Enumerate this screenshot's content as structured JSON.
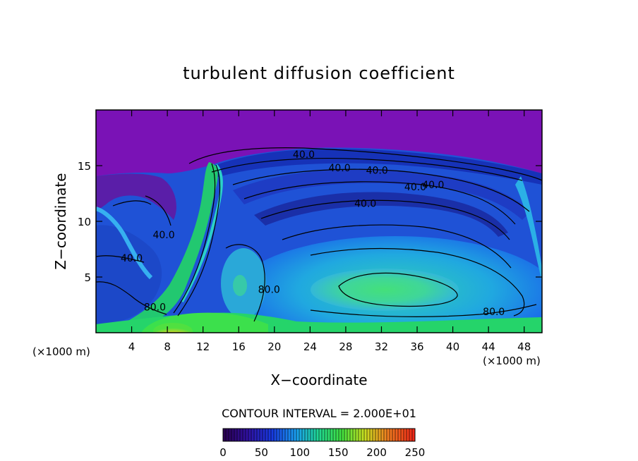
{
  "chart_data": {
    "type": "heatmap",
    "title": "turbulent diffusion coefficient",
    "xlabel": "X−coordinate",
    "ylabel": "Z−coordinate",
    "x_unit": "(×1000 m)",
    "y_unit": "(×1000 m)",
    "xlim": [
      0,
      50
    ],
    "ylim": [
      0,
      20
    ],
    "x_ticks": [
      4,
      8,
      12,
      16,
      20,
      24,
      28,
      32,
      36,
      40,
      44,
      48
    ],
    "y_ticks": [
      5,
      10,
      15
    ],
    "contour_interval_text": "CONTOUR INTERVAL = 2.000E+01",
    "colorbar": {
      "min": 0,
      "max": 250,
      "ticks": [
        0,
        50,
        100,
        150,
        200,
        250
      ]
    },
    "contour_labels": [
      {
        "text": "40.0",
        "x": 23.3,
        "y": 16.0
      },
      {
        "text": "40.0",
        "x": 27.3,
        "y": 14.8
      },
      {
        "text": "40.0",
        "x": 31.5,
        "y": 14.6
      },
      {
        "text": "40.0",
        "x": 35.8,
        "y": 13.1
      },
      {
        "text": "40.0",
        "x": 37.8,
        "y": 13.3
      },
      {
        "text": "40.0",
        "x": 30.2,
        "y": 11.6
      },
      {
        "text": "40.0",
        "x": 7.6,
        "y": 8.8
      },
      {
        "text": "40.0",
        "x": 4.0,
        "y": 6.7
      },
      {
        "text": "80.0",
        "x": 6.6,
        "y": 2.3
      },
      {
        "text": "80.0",
        "x": 19.4,
        "y": 3.9
      },
      {
        "text": "80.0",
        "x": 44.6,
        "y": 1.9
      }
    ]
  }
}
